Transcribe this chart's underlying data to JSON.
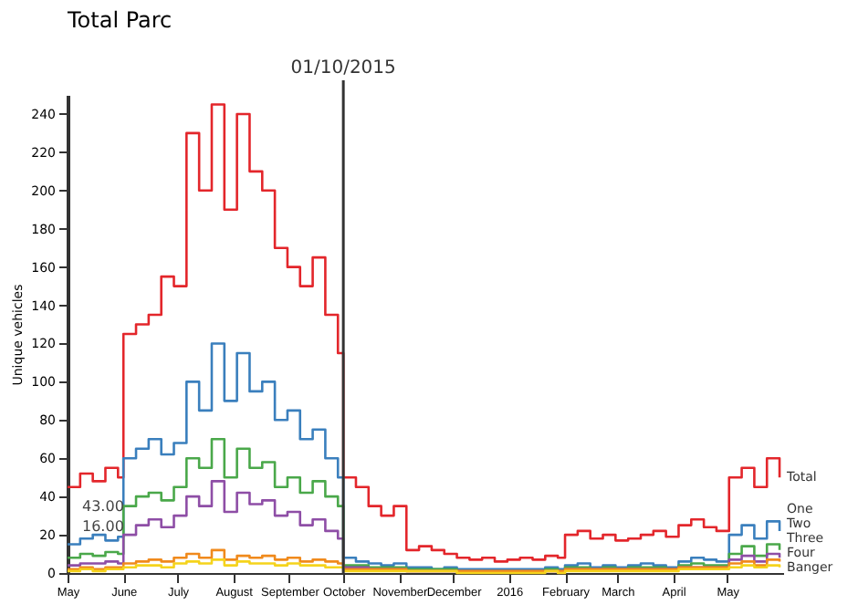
{
  "chart_data": {
    "type": "step",
    "title": "Total Parc",
    "ylabel": "Unique vehicles",
    "x": [
      "2015-05-01",
      "2015-05-08",
      "2015-05-15",
      "2015-05-22",
      "2015-05-29",
      "2015-06-01",
      "2015-06-08",
      "2015-06-15",
      "2015-06-22",
      "2015-06-29",
      "2015-07-06",
      "2015-07-13",
      "2015-07-20",
      "2015-07-27",
      "2015-08-03",
      "2015-08-10",
      "2015-08-17",
      "2015-08-24",
      "2015-08-31",
      "2015-09-07",
      "2015-09-14",
      "2015-09-21",
      "2015-09-28",
      "2015-10-01",
      "2015-10-08",
      "2015-10-15",
      "2015-10-22",
      "2015-10-29",
      "2015-11-05",
      "2015-11-12",
      "2015-11-19",
      "2015-11-26",
      "2015-12-03",
      "2015-12-10",
      "2015-12-17",
      "2015-12-24",
      "2015-12-31",
      "2016-01-07",
      "2016-01-14",
      "2016-01-21",
      "2016-01-28",
      "2016-02-01",
      "2016-02-08",
      "2016-02-15",
      "2016-02-22",
      "2016-02-29",
      "2016-03-07",
      "2016-03-14",
      "2016-03-21",
      "2016-03-28",
      "2016-04-04",
      "2016-04-11",
      "2016-04-18",
      "2016-04-25",
      "2016-05-02",
      "2016-05-09",
      "2016-05-16",
      "2016-05-23",
      "2016-05-30"
    ],
    "series": [
      {
        "name": "Total",
        "color": "#e3262b",
        "values": [
          45,
          52,
          48,
          55,
          50,
          125,
          130,
          135,
          155,
          150,
          230,
          200,
          245,
          190,
          240,
          210,
          200,
          170,
          160,
          150,
          165,
          135,
          115,
          50,
          45,
          35,
          30,
          35,
          12,
          14,
          12,
          10,
          8,
          7,
          8,
          6,
          7,
          8,
          7,
          9,
          8,
          20,
          22,
          18,
          20,
          17,
          18,
          20,
          22,
          19,
          25,
          28,
          24,
          22,
          50,
          55,
          45,
          60,
          50
        ]
      },
      {
        "name": "One",
        "color": "#3a7fbd",
        "values": [
          15,
          18,
          20,
          17,
          19,
          60,
          65,
          70,
          62,
          68,
          100,
          85,
          120,
          90,
          115,
          95,
          100,
          80,
          85,
          70,
          75,
          60,
          50,
          8,
          6,
          5,
          4,
          5,
          3,
          3,
          2,
          3,
          2,
          2,
          2,
          2,
          2,
          2,
          2,
          3,
          2,
          4,
          5,
          3,
          4,
          3,
          4,
          5,
          4,
          3,
          6,
          8,
          7,
          6,
          20,
          25,
          18,
          27,
          22
        ]
      },
      {
        "name": "Two",
        "color": "#4aa84a",
        "values": [
          8,
          10,
          9,
          11,
          10,
          35,
          40,
          42,
          38,
          45,
          60,
          55,
          70,
          50,
          65,
          55,
          58,
          45,
          50,
          42,
          48,
          40,
          35,
          4,
          4,
          3,
          3,
          3,
          2,
          2,
          2,
          2,
          1,
          1,
          1,
          1,
          1,
          1,
          1,
          2,
          1,
          3,
          3,
          2,
          3,
          2,
          3,
          3,
          3,
          2,
          4,
          5,
          4,
          4,
          10,
          14,
          9,
          15,
          12
        ]
      },
      {
        "name": "Three",
        "color": "#8e4ea6",
        "values": [
          4,
          5,
          5,
          6,
          5,
          20,
          25,
          28,
          24,
          30,
          40,
          35,
          48,
          32,
          42,
          36,
          38,
          30,
          32,
          25,
          28,
          22,
          18,
          3,
          3,
          2,
          2,
          2,
          1,
          1,
          1,
          1,
          1,
          1,
          1,
          1,
          1,
          1,
          1,
          1,
          1,
          2,
          2,
          2,
          2,
          2,
          2,
          2,
          2,
          2,
          3,
          3,
          3,
          3,
          7,
          9,
          6,
          10,
          8
        ]
      },
      {
        "name": "Four",
        "color": "#f08a1c",
        "values": [
          2,
          3,
          2,
          3,
          3,
          5,
          6,
          7,
          6,
          8,
          10,
          8,
          12,
          7,
          9,
          8,
          9,
          7,
          8,
          6,
          7,
          6,
          5,
          2,
          2,
          2,
          2,
          2,
          1,
          1,
          1,
          1,
          1,
          1,
          1,
          1,
          1,
          1,
          1,
          1,
          1,
          2,
          2,
          2,
          2,
          2,
          2,
          2,
          2,
          2,
          3,
          3,
          3,
          3,
          5,
          6,
          4,
          7,
          6
        ]
      },
      {
        "name": "Banger",
        "color": "#f5d31c",
        "values": [
          1,
          2,
          1,
          2,
          2,
          3,
          4,
          4,
          3,
          5,
          6,
          5,
          7,
          4,
          6,
          5,
          5,
          4,
          5,
          4,
          4,
          3,
          3,
          1,
          1,
          1,
          1,
          1,
          1,
          1,
          1,
          1,
          0,
          0,
          0,
          0,
          0,
          0,
          0,
          1,
          0,
          1,
          1,
          1,
          1,
          1,
          1,
          1,
          1,
          1,
          2,
          2,
          2,
          2,
          3,
          4,
          3,
          4,
          3
        ]
      }
    ],
    "annotations": [
      {
        "text": "43.00",
        "x": "2015-05-01",
        "y": 43
      },
      {
        "text": "16.00",
        "x": "2015-05-01",
        "y": 16
      }
    ],
    "ref_lines": [
      {
        "axis": "x",
        "value": "2015-10-01",
        "label": "01/10/2015",
        "color": "#333333"
      }
    ],
    "xlim": [
      "2015-05-01",
      "2016-06-01"
    ],
    "xticks": [
      {
        "value": "2015-05-01",
        "label": "May"
      },
      {
        "value": "2015-06-01",
        "label": "June"
      },
      {
        "value": "2015-07-01",
        "label": "July"
      },
      {
        "value": "2015-08-01",
        "label": "August"
      },
      {
        "value": "2015-09-01",
        "label": "September"
      },
      {
        "value": "2015-10-01",
        "label": "October"
      },
      {
        "value": "2015-11-01",
        "label": "November"
      },
      {
        "value": "2015-12-01",
        "label": "December"
      },
      {
        "value": "2016-01-01",
        "label": "2016"
      },
      {
        "value": "2016-02-01",
        "label": "February"
      },
      {
        "value": "2016-03-01",
        "label": "March"
      },
      {
        "value": "2016-04-01",
        "label": "April"
      },
      {
        "value": "2016-05-01",
        "label": "May"
      }
    ],
    "ylim": [
      0,
      250
    ],
    "yticks": [
      0,
      20,
      40,
      60,
      80,
      100,
      120,
      140,
      160,
      180,
      200,
      220,
      240
    ],
    "grid": false,
    "legend": false
  }
}
